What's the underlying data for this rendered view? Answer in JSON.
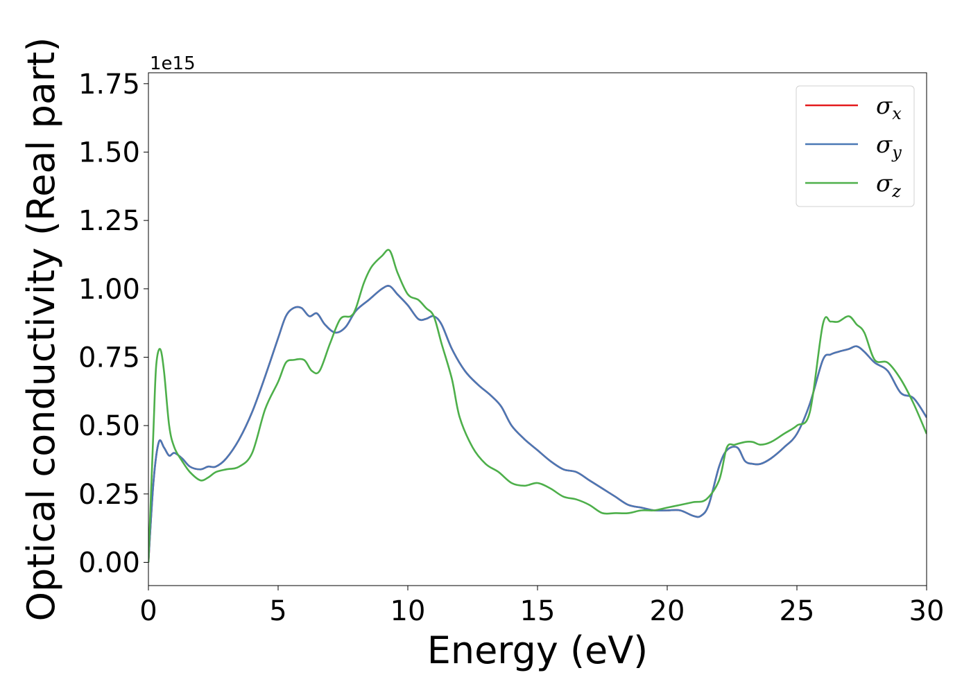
{
  "chart_data": {
    "type": "line",
    "xlabel": "Energy (eV)",
    "ylabel": "Optical conductivity (Real part)",
    "y_offset_label": "1e15",
    "y_scale": 1000000000000000.0,
    "xlim": [
      0,
      30
    ],
    "ylim": [
      -0.085,
      1.79
    ],
    "x_ticks": [
      0,
      5,
      10,
      15,
      20,
      25,
      30
    ],
    "x_tick_labels": [
      "0",
      "5",
      "10",
      "15",
      "20",
      "25",
      "30"
    ],
    "y_ticks": [
      0.0,
      0.25,
      0.5,
      0.75,
      1.0,
      1.25,
      1.5,
      1.75
    ],
    "y_tick_labels": [
      "0.00",
      "0.25",
      "0.50",
      "0.75",
      "1.00",
      "1.25",
      "1.50",
      "1.75"
    ],
    "grid": false,
    "legend_position": "top-right",
    "series": [
      {
        "name": "σx",
        "symbol": "σ",
        "subscript": "x",
        "color": "#e41a1c",
        "x": [
          0,
          0.2,
          0.4,
          0.6,
          0.8,
          1.0,
          1.3,
          1.6,
          2.0,
          2.3,
          2.6,
          3.0,
          3.5,
          4.0,
          4.5,
          5.0,
          5.3,
          5.6,
          5.9,
          6.2,
          6.5,
          6.8,
          7.2,
          7.6,
          8.0,
          8.5,
          9.0,
          9.3,
          9.6,
          10.0,
          10.4,
          10.7,
          11.0,
          11.3,
          11.7,
          12.2,
          12.7,
          13.2,
          13.6,
          14.0,
          14.5,
          15.0,
          15.5,
          16.0,
          16.5,
          17.0,
          17.5,
          18.0,
          18.5,
          19.0,
          19.5,
          20.0,
          20.5,
          21.0,
          21.3,
          21.6,
          22.0,
          22.3,
          22.7,
          23.0,
          23.3,
          23.6,
          24.0,
          24.5,
          25.0,
          25.5,
          26.0,
          26.3,
          26.6,
          27.0,
          27.3,
          27.6,
          28.0,
          28.5,
          29.0,
          29.5,
          30.0
        ],
        "y": [
          0.0,
          0.3,
          0.44,
          0.42,
          0.39,
          0.4,
          0.38,
          0.35,
          0.34,
          0.35,
          0.35,
          0.38,
          0.45,
          0.55,
          0.68,
          0.82,
          0.9,
          0.93,
          0.93,
          0.9,
          0.91,
          0.87,
          0.84,
          0.86,
          0.92,
          0.96,
          1.0,
          1.01,
          0.98,
          0.94,
          0.89,
          0.89,
          0.9,
          0.87,
          0.78,
          0.7,
          0.65,
          0.61,
          0.57,
          0.5,
          0.45,
          0.41,
          0.37,
          0.34,
          0.33,
          0.3,
          0.27,
          0.24,
          0.21,
          0.2,
          0.19,
          0.19,
          0.19,
          0.17,
          0.17,
          0.21,
          0.35,
          0.41,
          0.42,
          0.37,
          0.36,
          0.36,
          0.38,
          0.42,
          0.47,
          0.58,
          0.74,
          0.76,
          0.77,
          0.78,
          0.79,
          0.77,
          0.73,
          0.7,
          0.62,
          0.6,
          0.53
        ]
      },
      {
        "name": "σy",
        "symbol": "σ",
        "subscript": "y",
        "color": "#4a78b5",
        "x": [
          0,
          0.2,
          0.4,
          0.6,
          0.8,
          1.0,
          1.3,
          1.6,
          2.0,
          2.3,
          2.6,
          3.0,
          3.5,
          4.0,
          4.5,
          5.0,
          5.3,
          5.6,
          5.9,
          6.2,
          6.5,
          6.8,
          7.2,
          7.6,
          8.0,
          8.5,
          9.0,
          9.3,
          9.6,
          10.0,
          10.4,
          10.7,
          11.0,
          11.3,
          11.7,
          12.2,
          12.7,
          13.2,
          13.6,
          14.0,
          14.5,
          15.0,
          15.5,
          16.0,
          16.5,
          17.0,
          17.5,
          18.0,
          18.5,
          19.0,
          19.5,
          20.0,
          20.5,
          21.0,
          21.3,
          21.6,
          22.0,
          22.3,
          22.7,
          23.0,
          23.3,
          23.6,
          24.0,
          24.5,
          25.0,
          25.5,
          26.0,
          26.3,
          26.6,
          27.0,
          27.3,
          27.6,
          28.0,
          28.5,
          29.0,
          29.5,
          30.0
        ],
        "y": [
          0.0,
          0.3,
          0.44,
          0.42,
          0.39,
          0.4,
          0.38,
          0.35,
          0.34,
          0.35,
          0.35,
          0.38,
          0.45,
          0.55,
          0.68,
          0.82,
          0.9,
          0.93,
          0.93,
          0.9,
          0.91,
          0.87,
          0.84,
          0.86,
          0.92,
          0.96,
          1.0,
          1.01,
          0.98,
          0.94,
          0.89,
          0.89,
          0.9,
          0.87,
          0.78,
          0.7,
          0.65,
          0.61,
          0.57,
          0.5,
          0.45,
          0.41,
          0.37,
          0.34,
          0.33,
          0.3,
          0.27,
          0.24,
          0.21,
          0.2,
          0.19,
          0.19,
          0.19,
          0.17,
          0.17,
          0.21,
          0.35,
          0.41,
          0.42,
          0.37,
          0.36,
          0.36,
          0.38,
          0.42,
          0.47,
          0.58,
          0.74,
          0.76,
          0.77,
          0.78,
          0.79,
          0.77,
          0.73,
          0.7,
          0.62,
          0.6,
          0.53
        ]
      },
      {
        "name": "σz",
        "symbol": "σ",
        "subscript": "z",
        "color": "#4daf4a",
        "x": [
          0,
          0.2,
          0.3,
          0.45,
          0.6,
          0.8,
          1.0,
          1.3,
          1.6,
          2.0,
          2.3,
          2.6,
          3.0,
          3.5,
          4.0,
          4.5,
          5.0,
          5.3,
          5.6,
          6.0,
          6.3,
          6.6,
          7.0,
          7.4,
          7.8,
          8.0,
          8.3,
          8.6,
          9.0,
          9.3,
          9.6,
          10.0,
          10.4,
          10.7,
          11.0,
          11.3,
          11.7,
          12.0,
          12.5,
          13.0,
          13.5,
          14.0,
          14.5,
          15.0,
          15.5,
          16.0,
          16.5,
          17.0,
          17.5,
          18.0,
          18.5,
          19.0,
          19.5,
          20.0,
          20.5,
          21.0,
          21.5,
          22.0,
          22.3,
          22.6,
          23.0,
          23.3,
          23.6,
          24.0,
          24.5,
          25.0,
          25.5,
          26.0,
          26.3,
          26.6,
          27.0,
          27.3,
          27.6,
          28.0,
          28.5,
          29.0,
          29.5,
          30.0
        ],
        "y": [
          0.0,
          0.5,
          0.72,
          0.78,
          0.7,
          0.5,
          0.42,
          0.37,
          0.33,
          0.3,
          0.31,
          0.33,
          0.34,
          0.35,
          0.4,
          0.56,
          0.66,
          0.73,
          0.74,
          0.74,
          0.7,
          0.7,
          0.8,
          0.89,
          0.9,
          0.93,
          1.02,
          1.08,
          1.12,
          1.14,
          1.06,
          0.98,
          0.96,
          0.93,
          0.9,
          0.8,
          0.67,
          0.53,
          0.42,
          0.36,
          0.33,
          0.29,
          0.28,
          0.29,
          0.27,
          0.24,
          0.23,
          0.21,
          0.18,
          0.18,
          0.18,
          0.19,
          0.19,
          0.2,
          0.21,
          0.22,
          0.23,
          0.3,
          0.42,
          0.43,
          0.44,
          0.44,
          0.43,
          0.44,
          0.47,
          0.5,
          0.55,
          0.87,
          0.88,
          0.88,
          0.9,
          0.87,
          0.84,
          0.74,
          0.73,
          0.67,
          0.58,
          0.47
        ]
      }
    ]
  }
}
